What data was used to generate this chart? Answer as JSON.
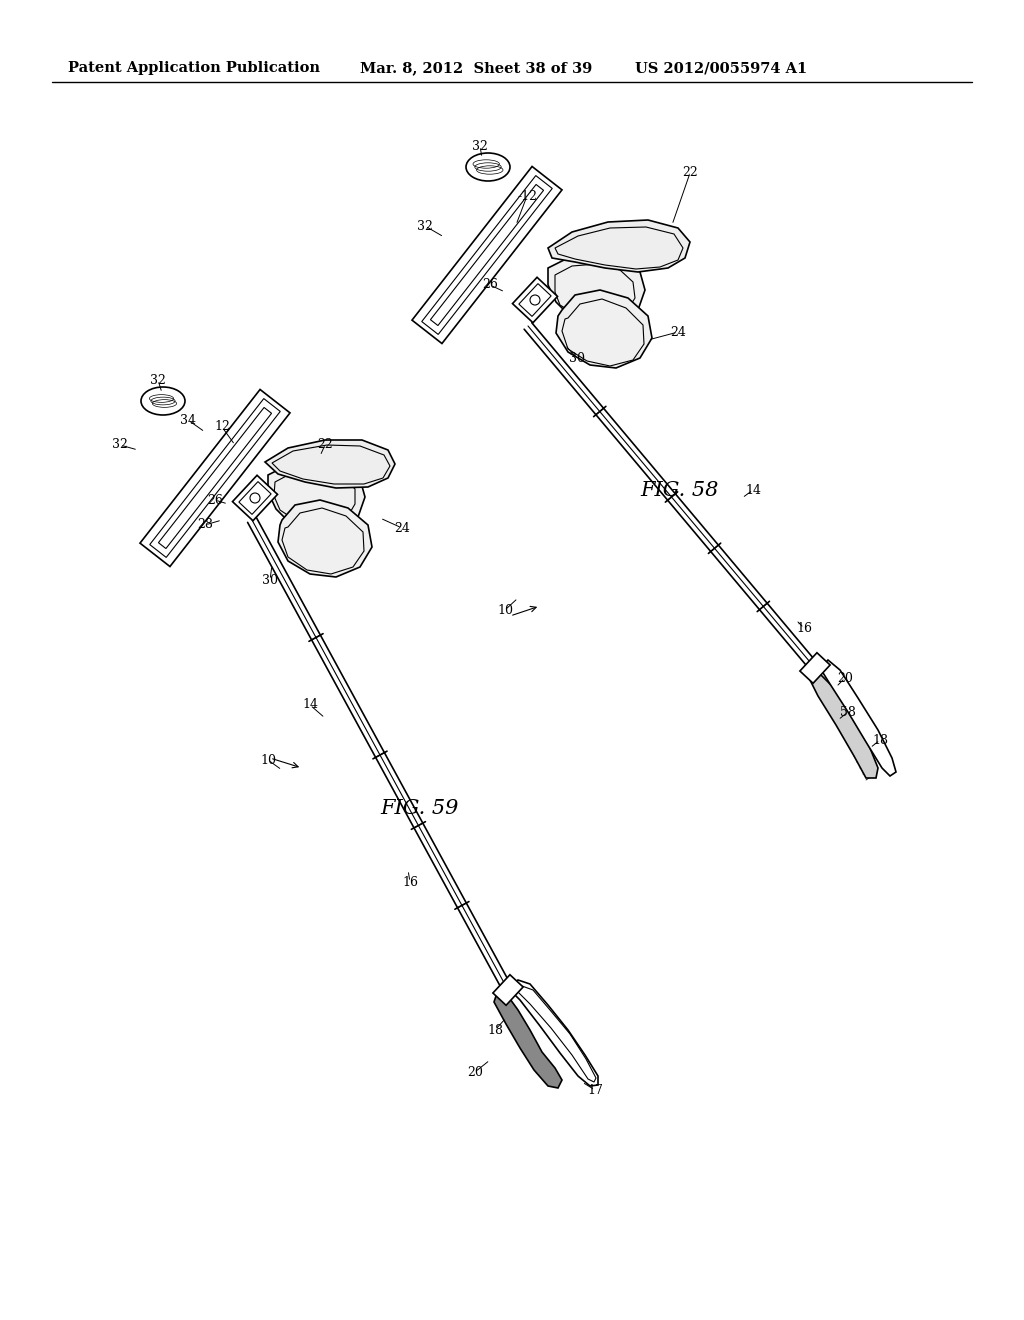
{
  "background_color": "#ffffff",
  "header_left": "Patent Application Publication",
  "header_middle": "Mar. 8, 2012  Sheet 38 of 39",
  "header_right": "US 2012/0055974 A1",
  "fig58_label": "FIG. 58",
  "fig59_label": "FIG. 59",
  "header_fontsize": 10.5,
  "ref_fontsize": 9,
  "fig_label_fontsize": 15
}
